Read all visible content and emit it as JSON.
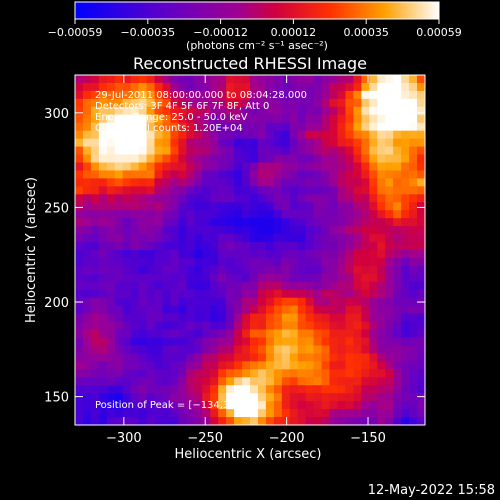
{
  "chart_data": {
    "type": "heatmap",
    "title": "Reconstructed RHESSI Image",
    "xlabel": "Heliocentric X (arcsec)",
    "ylabel": "Heliocentric Y (arcsec)",
    "xlim": [
      -330,
      -115
    ],
    "ylim": [
      135,
      320
    ],
    "x_ticks": [
      -300,
      -250,
      -200,
      -150
    ],
    "y_ticks": [
      150,
      200,
      250,
      300
    ],
    "x_tick_labels": [
      "−300",
      "−250",
      "−200",
      "−150"
    ],
    "y_tick_labels": [
      "150",
      "200",
      "250",
      "300"
    ],
    "colorbar": {
      "range": [
        -0.00059,
        0.00059
      ],
      "tick_labels": [
        "−0.00059",
        "−0.00035",
        "−0.00012",
        "0.00012",
        "0.00035",
        "0.00059"
      ],
      "unit_label": "(photons cm⁻² s⁻¹ asec⁻²)",
      "colors": [
        "#0000ff",
        "#5a00d0",
        "#a000a0",
        "#d00040",
        "#ff2000",
        "#ff8000",
        "#ffd040",
        "#ffffff"
      ]
    },
    "annotations": [
      "29-Jul-2011 08:00:00.000 to 08:04:28.000",
      "Detectors: 3F 4F 5F 6F 7F 8F, Att 0",
      "Energy Range: 25.0 - 50.0 keV",
      "Clean     Total counts: 1.20E+04"
    ],
    "peak_label": "Position of Peak = [−134,322]",
    "grid": false
  },
  "footer": {
    "timestamp": "12-May-2022 15:58"
  }
}
